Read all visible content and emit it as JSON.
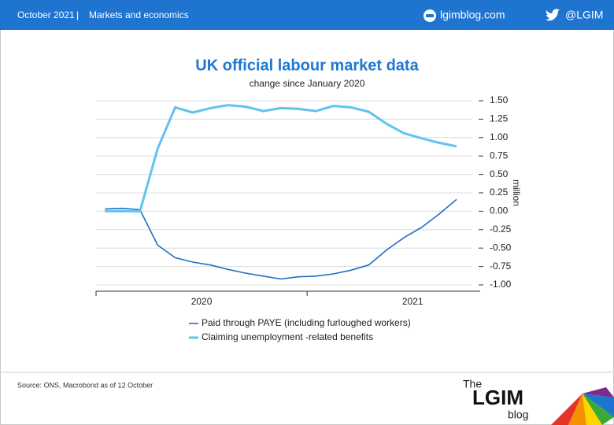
{
  "header": {
    "date": "October 2021",
    "separator": "|",
    "section": "Markets and economics",
    "site": "lgimblog.com",
    "twitter": "@LGIM"
  },
  "chart_data": {
    "type": "line",
    "title": "UK official labour market data",
    "subtitle": "change since January 2020",
    "y_label": "million",
    "x": [
      2020.042,
      2020.125,
      2020.208,
      2020.292,
      2020.375,
      2020.458,
      2020.542,
      2020.625,
      2020.708,
      2020.792,
      2020.875,
      2020.958,
      2021.042,
      2021.125,
      2021.208,
      2021.292,
      2021.375,
      2021.458,
      2021.542,
      2021.625,
      2021.708
    ],
    "xlim": [
      2020,
      2021.82
    ],
    "xticks": [
      2020,
      2021
    ],
    "ylim": [
      -1.05,
      1.55
    ],
    "yticks": [
      {
        "value": 1.5,
        "label": "1.50"
      },
      {
        "value": 1.25,
        "label": "1.25"
      },
      {
        "value": 1,
        "label": "1.00"
      },
      {
        "value": 0.75,
        "label": "0.75"
      },
      {
        "value": 0.5,
        "label": "0.50"
      },
      {
        "value": 0.25,
        "label": "0.25"
      },
      {
        "value": 0,
        "label": "0.00"
      },
      {
        "value": -0.25,
        "label": "-0.25"
      },
      {
        "value": -0.5,
        "label": "-0.50"
      },
      {
        "value": -0.75,
        "label": "-0.75"
      },
      {
        "value": -1,
        "label": "-1.00"
      }
    ],
    "grid": true,
    "series": [
      {
        "name": "Paid through PAYE (including furloughed workers)",
        "color": "#1f6fc5",
        "values": [
          0.03,
          0.04,
          0.02,
          -0.46,
          -0.63,
          -0.69,
          -0.73,
          -0.79,
          -0.84,
          -0.88,
          -0.92,
          -0.89,
          -0.88,
          -0.85,
          -0.8,
          -0.73,
          -0.53,
          -0.36,
          -0.22,
          -0.04,
          0.16
        ]
      },
      {
        "name": "Claiming unemployment -related benefits",
        "color": "#62c3ee",
        "values": [
          0,
          0,
          0,
          0.85,
          1.41,
          1.34,
          1.4,
          1.44,
          1.42,
          1.36,
          1.4,
          1.39,
          1.36,
          1.43,
          1.41,
          1.35,
          1.19,
          1.06,
          0.99,
          0.93,
          0.88
        ]
      }
    ]
  },
  "footer": {
    "source": "Source: ONS, Macrobond as of 12 October",
    "logo_the": "The",
    "logo_main": "LGIM",
    "logo_blog": "blog"
  }
}
